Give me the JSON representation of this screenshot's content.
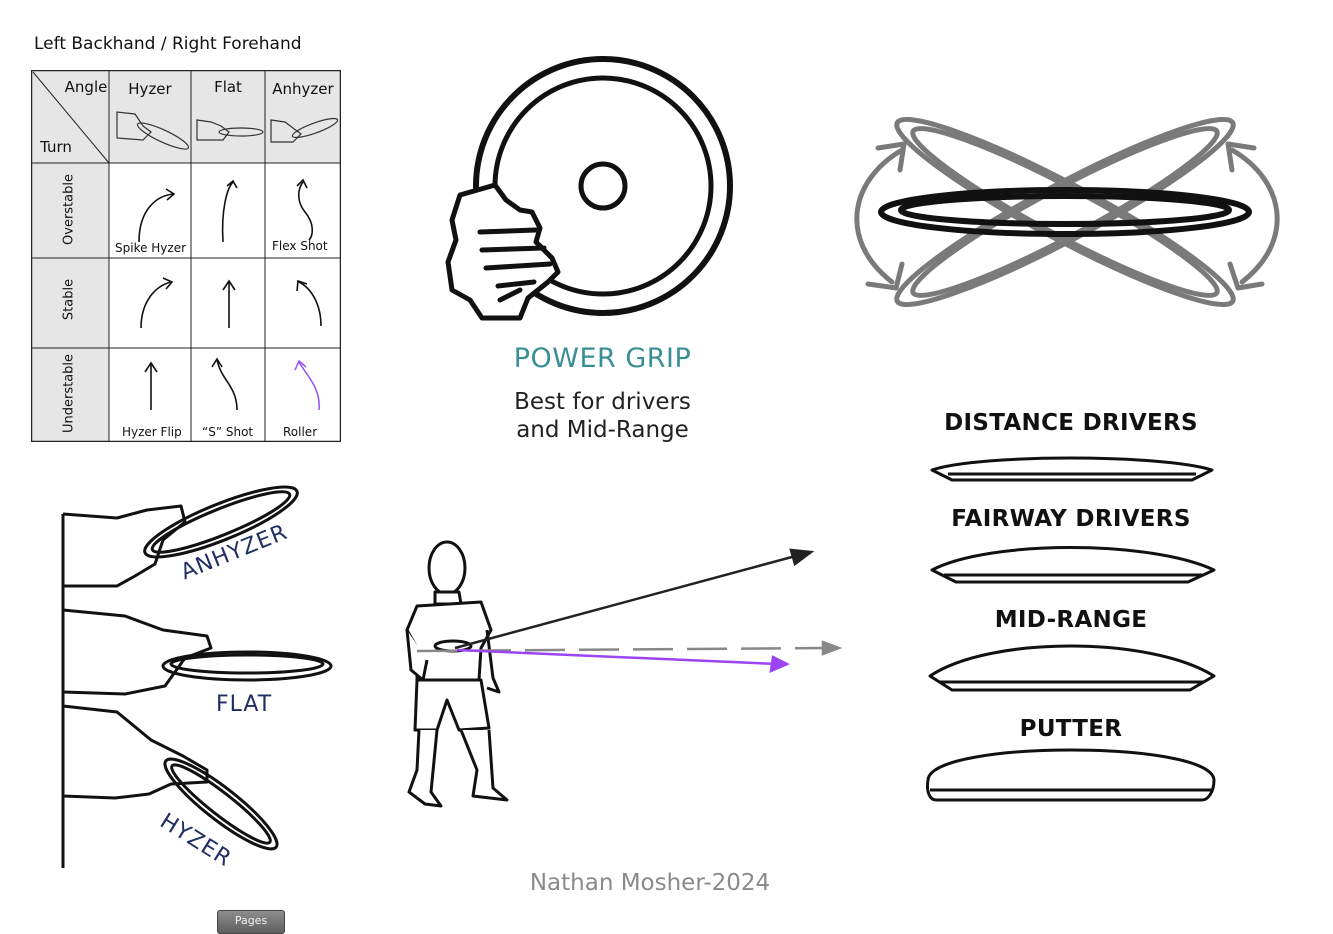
{
  "flight_chart": {
    "title": "Left Backhand / Right Forehand",
    "corner_angle": "Angle",
    "corner_turn": "Turn",
    "columns": [
      "Hyzer",
      "Flat",
      "Anhyzer"
    ],
    "rows": [
      "Overstable",
      "Stable",
      "Understable"
    ],
    "shot_labels": {
      "spike_hyzer": "Spike Hyzer",
      "flex_shot": "Flex Shot",
      "hyzer_flip": "Hyzer Flip",
      "s_shot": "“S” Shot",
      "roller": "Roller"
    },
    "highlight_color": "#9b59f0"
  },
  "grip": {
    "title": "POWER GRIP",
    "desc_line1": "Best for drivers",
    "desc_line2": "and Mid-Range",
    "title_color": "#3a8f94"
  },
  "disc_types": [
    "DISTANCE DRIVERS",
    "FAIRWAY DRIVERS",
    "MID-RANGE",
    "PUTTER"
  ],
  "release_angles": [
    "ANHYZER",
    "FLAT",
    "HYZER"
  ],
  "throw_paths": {
    "accent_color": "#9b45f5"
  },
  "footer": {
    "credit": "Nathan Mosher-2024"
  },
  "pages_button": {
    "label": "Pages"
  }
}
